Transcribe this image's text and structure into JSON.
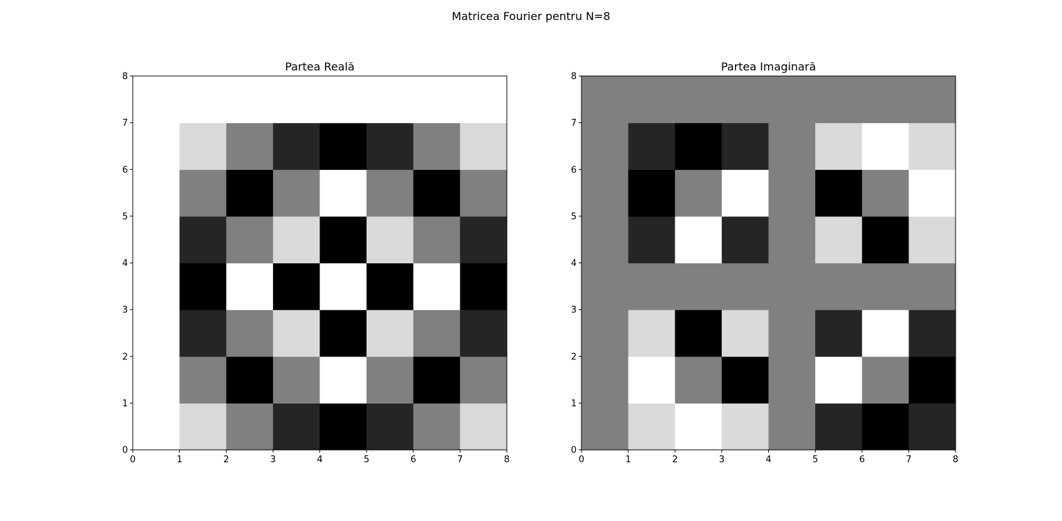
{
  "figure": {
    "title": "Matricea Fourier pentru N=8"
  },
  "chart_data": [
    {
      "type": "heatmap",
      "title": "Partea Reală",
      "xlabel": "",
      "ylabel": "",
      "xlim": [
        0,
        8
      ],
      "ylim": [
        0,
        8
      ],
      "xticks": [
        "0",
        "1",
        "2",
        "3",
        "4",
        "5",
        "6",
        "7",
        "8"
      ],
      "yticks": [
        "0",
        "1",
        "2",
        "3",
        "4",
        "5",
        "6",
        "7",
        "8"
      ],
      "colormap": "gray",
      "vmin": -1,
      "vmax": 1,
      "grid": false,
      "rows_bottom_to_top": [
        [
          1,
          0.707,
          0,
          -0.707,
          -1,
          -0.707,
          0,
          0.707
        ],
        [
          1,
          0,
          -1,
          0,
          1,
          0,
          -1,
          0
        ],
        [
          1,
          -0.707,
          0,
          0.707,
          -1,
          0.707,
          0,
          -0.707
        ],
        [
          1,
          -1,
          1,
          -1,
          1,
          -1,
          1,
          -1
        ],
        [
          1,
          -0.707,
          0,
          0.707,
          -1,
          0.707,
          0,
          -0.707
        ],
        [
          1,
          0,
          -1,
          0,
          1,
          0,
          -1,
          0
        ],
        [
          1,
          0.707,
          0,
          -0.707,
          -1,
          -0.707,
          0,
          0.707
        ],
        [
          1,
          1,
          1,
          1,
          1,
          1,
          1,
          1
        ]
      ]
    },
    {
      "type": "heatmap",
      "title": "Partea Imaginară",
      "xlabel": "",
      "ylabel": "",
      "xlim": [
        0,
        8
      ],
      "ylim": [
        0,
        8
      ],
      "xticks": [
        "0",
        "1",
        "2",
        "3",
        "4",
        "5",
        "6",
        "7",
        "8"
      ],
      "yticks": [
        "0",
        "1",
        "2",
        "3",
        "4",
        "5",
        "6",
        "7",
        "8"
      ],
      "colormap": "gray",
      "vmin": -1,
      "vmax": 1,
      "grid": false,
      "rows_bottom_to_top": [
        [
          0,
          0.707,
          1,
          0.707,
          0,
          -0.707,
          -1,
          -0.707
        ],
        [
          0,
          1,
          0,
          -1,
          0,
          1,
          0,
          -1
        ],
        [
          0,
          0.707,
          -1,
          0.707,
          0,
          -0.707,
          1,
          -0.707
        ],
        [
          0,
          0,
          0,
          0,
          0,
          0,
          0,
          0
        ],
        [
          0,
          -0.707,
          1,
          -0.707,
          0,
          0.707,
          -1,
          0.707
        ],
        [
          0,
          -1,
          0,
          1,
          0,
          -1,
          0,
          1
        ],
        [
          0,
          -0.707,
          -1,
          -0.707,
          0,
          0.707,
          1,
          0.707
        ],
        [
          0,
          0,
          0,
          0,
          0,
          0,
          0,
          0
        ]
      ]
    }
  ]
}
